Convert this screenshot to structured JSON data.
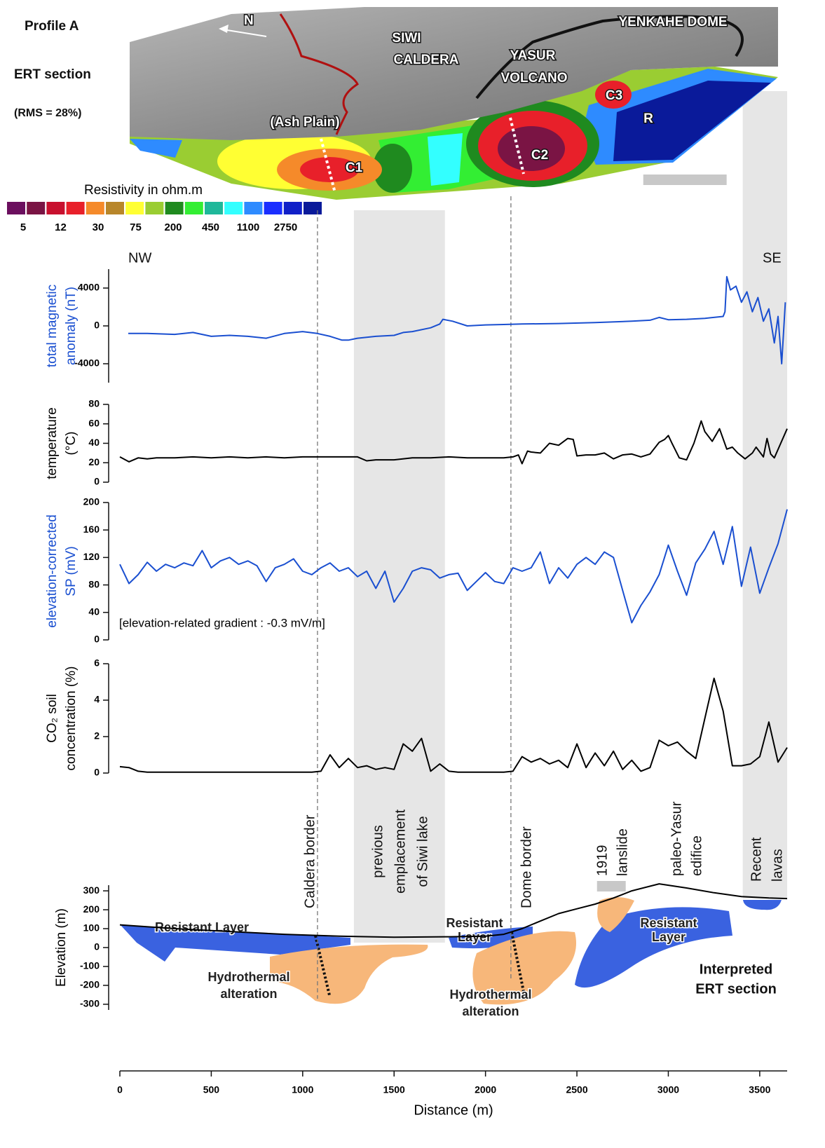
{
  "ert_section": {
    "title": "Profile A",
    "subtitle": "ERT section",
    "rms": "(RMS = 28%)",
    "north": "N",
    "places": [
      [
        "SIWI",
        "CALDERA"
      ],
      [
        "YASUR",
        "VOLCANO"
      ],
      [
        "YENKAHE DOME"
      ],
      [
        "(Ash Plain)"
      ]
    ],
    "anomalies": [
      "C1",
      "C2",
      "C3",
      "R"
    ]
  },
  "resistivity_legend": {
    "title": "Resistivity in ohm.m",
    "colors": [
      "#6b0f5e",
      "#7a1444",
      "#c8102e",
      "#e8202a",
      "#f58a2a",
      "#b8862a",
      "#ffff33",
      "#9acd32",
      "#1f8a1f",
      "#33ee33",
      "#1fb89a",
      "#33ffff",
      "#2e8bff",
      "#1a2eff",
      "#1020c8",
      "#0a1a9a"
    ],
    "labels": [
      5,
      12,
      30,
      75,
      200,
      450,
      1100,
      2750
    ]
  },
  "directions": [
    "NW",
    "SE"
  ],
  "distance_axis": {
    "label": "Distance (m)",
    "xlim": [
      0,
      3650
    ],
    "xticks": [
      0,
      500,
      1000,
      1500,
      2000,
      2500,
      3000,
      3500
    ]
  },
  "overlays": {
    "zones": [
      {
        "label": [
          "previous",
          "emplacement",
          "of Siwi lake"
        ],
        "x": [
          1280,
          1778
        ]
      },
      {
        "label": [
          "Recent",
          "lavas"
        ],
        "x": [
          3407,
          3650
        ]
      }
    ],
    "borders": [
      {
        "label": "Caldera border",
        "x": 1081
      },
      {
        "label": "Dome border",
        "x": 2139
      }
    ],
    "features": [
      {
        "label": [
          "1919",
          "lanslide"
        ],
        "x": [
          2610,
          2767
        ]
      },
      {
        "label": [
          "paleo-Yasur",
          "edifice"
        ],
        "x": [
          2863,
          3319
        ]
      }
    ]
  },
  "interpretation": {
    "resistant_layers": [
      [
        "Resistant Layer"
      ],
      [
        "Resistant",
        "Layer"
      ],
      [
        "Resistant",
        "Layer"
      ]
    ],
    "hydrothermal": [
      [
        "Hydrothermal",
        "alteration"
      ],
      [
        "Hydrothermal",
        "alteration"
      ]
    ],
    "title": [
      "Interpreted",
      "ERT section"
    ]
  },
  "chart_data": [
    {
      "type": "line",
      "ylabel": [
        "total magnetic",
        "anomaly (nT)"
      ],
      "color": "#1a4fd0",
      "ylim": [
        -6000,
        6000
      ],
      "yticks": [
        4000,
        0,
        -4000
      ],
      "x": [
        46,
        150,
        300,
        400,
        500,
        600,
        700,
        800,
        900,
        1000,
        1080,
        1150,
        1215,
        1250,
        1300,
        1400,
        1500,
        1550,
        1600,
        1700,
        1750,
        1767,
        1820,
        1900,
        2000,
        2100,
        2200,
        2400,
        2600,
        2800,
        2900,
        2950,
        3000,
        3100,
        3200,
        3300,
        3310,
        3320,
        3340,
        3370,
        3400,
        3430,
        3460,
        3490,
        3520,
        3550,
        3580,
        3600,
        3620,
        3640
      ],
      "values": [
        -800,
        -800,
        -900,
        -700,
        -1100,
        -1000,
        -1100,
        -1300,
        -800,
        -600,
        -800,
        -1100,
        -1500,
        -1500,
        -1300,
        -1100,
        -1000,
        -700,
        -600,
        -200,
        200,
        700,
        500,
        0,
        100,
        150,
        200,
        250,
        350,
        500,
        600,
        900,
        650,
        700,
        800,
        1000,
        1500,
        5200,
        3800,
        4200,
        2500,
        3600,
        1500,
        3000,
        500,
        1800,
        -1800,
        1000,
        -4000,
        2500
      ]
    },
    {
      "type": "line",
      "ylabel": [
        "temperature",
        "(°C)"
      ],
      "color": "#000000",
      "ylim": [
        0,
        80
      ],
      "yticks": [
        0,
        20,
        40,
        60,
        80
      ],
      "x": [
        0,
        50,
        100,
        150,
        200,
        300,
        400,
        500,
        600,
        700,
        800,
        900,
        1000,
        1100,
        1200,
        1300,
        1350,
        1400,
        1500,
        1600,
        1700,
        1800,
        1900,
        2000,
        2100,
        2150,
        2180,
        2200,
        2230,
        2250,
        2300,
        2350,
        2400,
        2450,
        2480,
        2500,
        2550,
        2600,
        2650,
        2700,
        2750,
        2800,
        2850,
        2900,
        2950,
        2980,
        3000,
        3020,
        3060,
        3100,
        3140,
        3180,
        3200,
        3240,
        3280,
        3320,
        3350,
        3380,
        3420,
        3460,
        3480,
        3520,
        3540,
        3560,
        3580,
        3650
      ],
      "values": [
        26,
        21,
        25,
        24,
        25,
        25,
        26,
        25,
        26,
        25,
        26,
        25,
        26,
        26,
        26,
        26,
        22,
        23,
        23,
        25,
        25,
        26,
        25,
        25,
        25,
        26,
        28,
        19,
        32,
        31,
        30,
        40,
        38,
        45,
        44,
        27,
        28,
        28,
        30,
        24,
        28,
        29,
        26,
        29,
        41,
        44,
        48,
        40,
        25,
        23,
        40,
        63,
        52,
        42,
        55,
        34,
        36,
        30,
        24,
        30,
        36,
        26,
        45,
        29,
        25,
        55
      ]
    },
    {
      "type": "line",
      "ylabel": [
        "elevation-corrected",
        "SP (mV)"
      ],
      "color": "#1a4fd0",
      "annotation": "[elevation-related gradient : -0.3 mV/m]",
      "ylim": [
        0,
        200
      ],
      "yticks": [
        0,
        40,
        80,
        120,
        160,
        200
      ],
      "x": [
        0,
        50,
        100,
        150,
        200,
        250,
        300,
        350,
        400,
        450,
        500,
        550,
        600,
        650,
        700,
        750,
        800,
        850,
        900,
        950,
        1000,
        1050,
        1100,
        1150,
        1200,
        1250,
        1300,
        1350,
        1400,
        1450,
        1500,
        1550,
        1600,
        1650,
        1700,
        1750,
        1800,
        1850,
        1900,
        1950,
        2000,
        2050,
        2100,
        2150,
        2200,
        2250,
        2300,
        2350,
        2400,
        2450,
        2500,
        2550,
        2600,
        2650,
        2700,
        2750,
        2800,
        2850,
        2900,
        2950,
        3000,
        3050,
        3100,
        3150,
        3200,
        3250,
        3300,
        3350,
        3400,
        3450,
        3500,
        3550,
        3600,
        3650
      ],
      "values": [
        110,
        82,
        95,
        113,
        100,
        110,
        105,
        112,
        108,
        130,
        105,
        115,
        120,
        110,
        115,
        108,
        85,
        105,
        110,
        118,
        100,
        95,
        105,
        112,
        100,
        105,
        92,
        100,
        75,
        100,
        55,
        75,
        100,
        105,
        102,
        90,
        95,
        97,
        72,
        85,
        98,
        85,
        82,
        105,
        100,
        105,
        128,
        82,
        105,
        90,
        110,
        120,
        110,
        128,
        120,
        72,
        25,
        50,
        70,
        95,
        138,
        100,
        65,
        112,
        132,
        158,
        110,
        165,
        78,
        135,
        68,
        105,
        140,
        190
      ]
    },
    {
      "type": "line",
      "ylabel": [
        "CO₂ soil",
        "concentration (%)"
      ],
      "color": "#000000",
      "ylim": [
        0,
        6
      ],
      "yticks": [
        0,
        2,
        4,
        6
      ],
      "x": [
        0,
        50,
        100,
        150,
        200,
        250,
        300,
        350,
        400,
        450,
        500,
        550,
        600,
        650,
        700,
        750,
        800,
        850,
        900,
        950,
        1000,
        1050,
        1100,
        1150,
        1200,
        1250,
        1300,
        1350,
        1400,
        1450,
        1500,
        1550,
        1600,
        1650,
        1700,
        1750,
        1800,
        1850,
        1900,
        1950,
        2000,
        2050,
        2100,
        2150,
        2200,
        2250,
        2300,
        2350,
        2400,
        2450,
        2500,
        2550,
        2600,
        2650,
        2700,
        2750,
        2800,
        2850,
        2900,
        2950,
        3000,
        3050,
        3100,
        3150,
        3200,
        3250,
        3300,
        3350,
        3400,
        3450,
        3500,
        3550,
        3600,
        3650
      ],
      "values": [
        0.35,
        0.3,
        0.1,
        0.05,
        0.05,
        0.05,
        0.05,
        0.05,
        0.05,
        0.05,
        0.05,
        0.05,
        0.05,
        0.05,
        0.05,
        0.05,
        0.05,
        0.05,
        0.05,
        0.05,
        0.05,
        0.05,
        0.1,
        1.0,
        0.3,
        0.8,
        0.3,
        0.4,
        0.2,
        0.3,
        0.2,
        1.6,
        1.2,
        1.9,
        0.1,
        0.5,
        0.1,
        0.05,
        0.05,
        0.05,
        0.05,
        0.05,
        0.05,
        0.1,
        0.9,
        0.6,
        0.8,
        0.5,
        0.7,
        0.3,
        1.6,
        0.3,
        1.1,
        0.4,
        1.2,
        0.2,
        0.7,
        0.1,
        0.3,
        1.8,
        1.5,
        1.7,
        1.2,
        0.8,
        3.0,
        5.2,
        3.4,
        0.4,
        0.4,
        0.5,
        0.9,
        2.8,
        0.6,
        1.4
      ]
    },
    {
      "type": "line",
      "ylabel": [
        "Elevation (m)"
      ],
      "color": "#000000",
      "ylim": [
        -330,
        330
      ],
      "yticks": [
        -300,
        -200,
        -100,
        0,
        100,
        200,
        300
      ],
      "x": [
        0,
        300,
        600,
        900,
        1200,
        1500,
        1800,
        2000,
        2100,
        2200,
        2300,
        2400,
        2500,
        2600,
        2700,
        2800,
        2950,
        3100,
        3250,
        3400,
        3550,
        3650
      ],
      "values": [
        120,
        100,
        85,
        70,
        60,
        55,
        57,
        60,
        70,
        100,
        140,
        180,
        205,
        230,
        262,
        300,
        337,
        315,
        290,
        270,
        262,
        259
      ]
    }
  ]
}
